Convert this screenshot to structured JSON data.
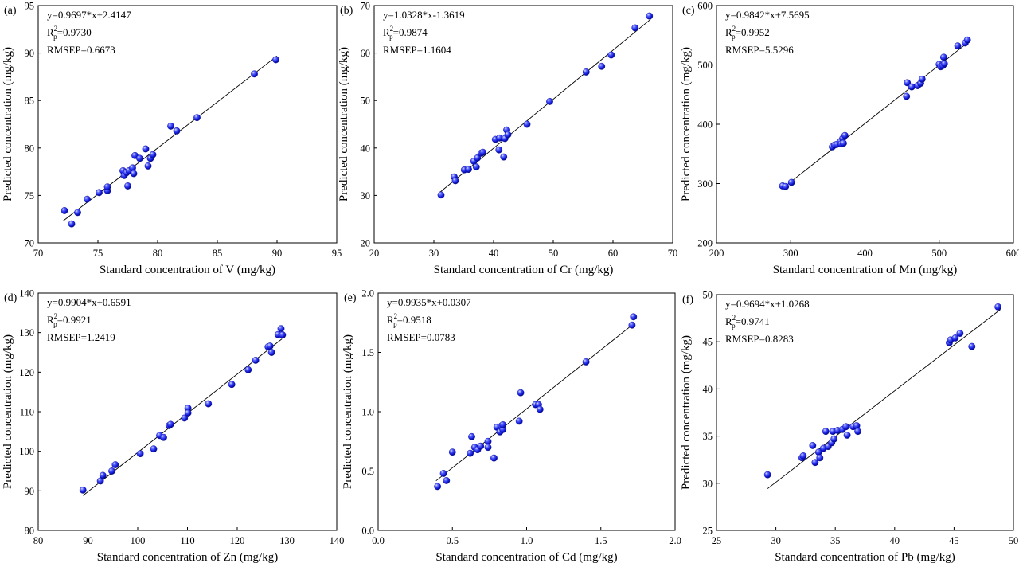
{
  "chart_data": [
    {
      "type": "scatter",
      "panel_label": "(a)",
      "xlabel": "Standard concentration of V (mg/kg)",
      "ylabel": "Predicted concentration (mg/kg)",
      "xlim": [
        70,
        95
      ],
      "ylim": [
        70,
        95
      ],
      "xticks": [
        70,
        75,
        80,
        85,
        90,
        95
      ],
      "yticks": [
        70,
        75,
        80,
        85,
        90,
        95
      ],
      "equation": "y=0.9697*x+2.4147",
      "r2": "=0.9730",
      "rmsep": "RMSEP=0.6673",
      "fit": {
        "slope": 0.9697,
        "intercept": 2.4147,
        "x_range": [
          72.1,
          90.0
        ]
      },
      "grid": false,
      "legend": "none",
      "points": [
        [
          72.2,
          73.4
        ],
        [
          72.8,
          72.0
        ],
        [
          73.3,
          73.2
        ],
        [
          74.1,
          74.6
        ],
        [
          75.1,
          75.3
        ],
        [
          75.8,
          75.5
        ],
        [
          75.8,
          75.9
        ],
        [
          77.1,
          77.6
        ],
        [
          77.2,
          77.1
        ],
        [
          77.4,
          77.4
        ],
        [
          77.6,
          77.6
        ],
        [
          77.9,
          77.9
        ],
        [
          77.5,
          76.0
        ],
        [
          78.0,
          77.3
        ],
        [
          78.1,
          79.2
        ],
        [
          78.5,
          78.9
        ],
        [
          79.0,
          79.9
        ],
        [
          79.2,
          78.1
        ],
        [
          79.4,
          78.9
        ],
        [
          79.6,
          79.3
        ],
        [
          81.1,
          82.3
        ],
        [
          81.6,
          81.8
        ],
        [
          83.3,
          83.2
        ],
        [
          88.1,
          87.8
        ],
        [
          89.9,
          89.3
        ]
      ]
    },
    {
      "type": "scatter",
      "panel_label": "(b)",
      "xlabel": "Standard concentration of Cr (mg/kg)",
      "ylabel": "Predicted concentration (mg/kg)",
      "xlim": [
        20,
        70
      ],
      "ylim": [
        20,
        70
      ],
      "xticks": [
        20,
        30,
        40,
        50,
        60,
        70
      ],
      "yticks": [
        20,
        30,
        40,
        50,
        60,
        70
      ],
      "equation": "y=1.0328*x-1.3619",
      "r2": "=0.9874",
      "rmsep": "RMSEP=1.1604",
      "fit": {
        "slope": 1.0328,
        "intercept": -1.3619,
        "x_range": [
          31.0,
          66.3
        ]
      },
      "grid": false,
      "legend": "none",
      "points": [
        [
          31.2,
          30.1
        ],
        [
          33.4,
          33.9
        ],
        [
          33.6,
          33.1
        ],
        [
          35.1,
          35.4
        ],
        [
          35.8,
          35.5
        ],
        [
          36.7,
          37.2
        ],
        [
          37.1,
          36.0
        ],
        [
          37.3,
          37.9
        ],
        [
          37.9,
          38.9
        ],
        [
          38.2,
          39.1
        ],
        [
          40.3,
          41.8
        ],
        [
          40.9,
          39.6
        ],
        [
          41.0,
          42.1
        ],
        [
          41.7,
          38.1
        ],
        [
          41.9,
          42.0
        ],
        [
          42.2,
          43.8
        ],
        [
          42.4,
          42.8
        ],
        [
          45.6,
          45.0
        ],
        [
          49.4,
          49.8
        ],
        [
          55.5,
          56.0
        ],
        [
          58.1,
          57.2
        ],
        [
          59.7,
          59.6
        ],
        [
          63.7,
          65.3
        ],
        [
          66.1,
          67.8
        ]
      ]
    },
    {
      "type": "scatter",
      "panel_label": "(c)",
      "xlabel": "Standard concentration of Mn (mg/kg)",
      "ylabel": "Predicted concentration (mg/kg)",
      "xlim": [
        200,
        600
      ],
      "ylim": [
        200,
        600
      ],
      "xticks": [
        200,
        300,
        400,
        500,
        600
      ],
      "yticks": [
        200,
        300,
        400,
        500,
        600
      ],
      "equation": "y=0.9842*x+7.5695",
      "r2": "=0.9952",
      "rmsep": "RMSEP=5.5296",
      "fit": {
        "slope": 0.9842,
        "intercept": 7.5695,
        "x_range": [
          288,
          540
        ]
      },
      "grid": false,
      "legend": "none",
      "points": [
        [
          289,
          296
        ],
        [
          293,
          295
        ],
        [
          301,
          302
        ],
        [
          356,
          362
        ],
        [
          359,
          365
        ],
        [
          362,
          366
        ],
        [
          367,
          371
        ],
        [
          368,
          367
        ],
        [
          370,
          376
        ],
        [
          371,
          368
        ],
        [
          373,
          381
        ],
        [
          456,
          447
        ],
        [
          457,
          470
        ],
        [
          463,
          463
        ],
        [
          471,
          465
        ],
        [
          475,
          469
        ],
        [
          477,
          476
        ],
        [
          500,
          501
        ],
        [
          502,
          497
        ],
        [
          505,
          499
        ],
        [
          507,
          502
        ],
        [
          506,
          513
        ],
        [
          525,
          532
        ],
        [
          535,
          537
        ],
        [
          538,
          542
        ]
      ]
    },
    {
      "type": "scatter",
      "panel_label": "(d)",
      "xlabel": "Standard concentration of Zn (mg/kg)",
      "ylabel": "Predicted concentration (mg/kg)",
      "xlim": [
        80,
        140
      ],
      "ylim": [
        80,
        140
      ],
      "xticks": [
        80,
        90,
        100,
        110,
        120,
        130,
        140
      ],
      "yticks": [
        80,
        90,
        100,
        110,
        120,
        130,
        140
      ],
      "equation": "y=0.9904*x+0.6591",
      "r2": "=0.9921",
      "rmsep": "RMSEP=1.2419",
      "fit": {
        "slope": 0.9904,
        "intercept": 0.6591,
        "x_range": [
          89.0,
          129.0
        ]
      },
      "grid": false,
      "legend": "none",
      "points": [
        [
          89.0,
          90.2
        ],
        [
          92.5,
          92.5
        ],
        [
          93.0,
          93.9
        ],
        [
          94.8,
          95.0
        ],
        [
          95.5,
          96.6
        ],
        [
          100.5,
          99.4
        ],
        [
          103.2,
          100.6
        ],
        [
          104.4,
          104.0
        ],
        [
          105.2,
          103.5
        ],
        [
          106.3,
          106.5
        ],
        [
          106.6,
          106.8
        ],
        [
          109.4,
          108.4
        ],
        [
          110.1,
          110.9
        ],
        [
          110.1,
          109.7
        ],
        [
          114.2,
          112.0
        ],
        [
          118.9,
          116.9
        ],
        [
          122.2,
          120.6
        ],
        [
          123.7,
          123.0
        ],
        [
          126.2,
          126.4
        ],
        [
          126.6,
          126.6
        ],
        [
          126.9,
          125.0
        ],
        [
          128.2,
          129.5
        ],
        [
          128.8,
          131.0
        ],
        [
          129.0,
          129.5
        ],
        [
          129.1,
          129.4
        ]
      ]
    },
    {
      "type": "scatter",
      "panel_label": "(e)",
      "xlabel": "Standard concentration of Cd (mg/kg)",
      "ylabel": "Predicted concentration (mg/kg)",
      "xlim": [
        0.0,
        2.0
      ],
      "ylim": [
        0.0,
        2.0
      ],
      "xticks": [
        "0.0",
        "0.5",
        "1.0",
        "1.5",
        "2.0"
      ],
      "yticks": [
        "0.0",
        "0.5",
        "1.0",
        "1.5",
        "2.0"
      ],
      "xtick_values": [
        0.0,
        0.5,
        1.0,
        1.5,
        2.0
      ],
      "ytick_values": [
        0.0,
        0.5,
        1.0,
        1.5,
        2.0
      ],
      "equation": "y=0.9935*x+0.0307",
      "r2": "=0.9518",
      "rmsep": "RMSEP=0.0783",
      "fit": {
        "slope": 0.9935,
        "intercept": 0.0307,
        "x_range": [
          0.39,
          1.72
        ]
      },
      "grid": false,
      "legend": "none",
      "points": [
        [
          0.4,
          0.37
        ],
        [
          0.44,
          0.48
        ],
        [
          0.46,
          0.42
        ],
        [
          0.5,
          0.66
        ],
        [
          0.62,
          0.65
        ],
        [
          0.63,
          0.79
        ],
        [
          0.65,
          0.7
        ],
        [
          0.67,
          0.68
        ],
        [
          0.69,
          0.71
        ],
        [
          0.74,
          0.75
        ],
        [
          0.74,
          0.7
        ],
        [
          0.78,
          0.61
        ],
        [
          0.8,
          0.87
        ],
        [
          0.82,
          0.83
        ],
        [
          0.83,
          0.88
        ],
        [
          0.84,
          0.85
        ],
        [
          0.84,
          0.89
        ],
        [
          0.95,
          0.92
        ],
        [
          0.96,
          1.16
        ],
        [
          1.06,
          1.06
        ],
        [
          1.08,
          1.06
        ],
        [
          1.09,
          1.02
        ],
        [
          1.4,
          1.42
        ],
        [
          1.71,
          1.73
        ],
        [
          1.72,
          1.8
        ]
      ]
    },
    {
      "type": "scatter",
      "panel_label": "(f)",
      "xlabel": "Standard concentration of Pb (mg/kg)",
      "ylabel": "Predicted concentration (mg/kg)",
      "xlim": [
        25,
        50
      ],
      "ylim": [
        25,
        50
      ],
      "xticks": [
        25,
        30,
        35,
        40,
        45,
        50
      ],
      "yticks": [
        25,
        30,
        35,
        40,
        45,
        50
      ],
      "equation": "y=0.9694*x+1.0268",
      "r2": "=0.9741",
      "rmsep": "RMSEP=0.8283",
      "fit": {
        "slope": 0.9694,
        "intercept": 1.0268,
        "x_range": [
          29.3,
          48.9
        ]
      },
      "grid": false,
      "legend": "none",
      "points": [
        [
          29.3,
          30.9
        ],
        [
          32.2,
          32.7
        ],
        [
          32.3,
          32.9
        ],
        [
          33.1,
          34.0
        ],
        [
          33.3,
          32.2
        ],
        [
          33.6,
          33.3
        ],
        [
          33.7,
          32.7
        ],
        [
          34.0,
          33.7
        ],
        [
          34.2,
          35.5
        ],
        [
          34.4,
          33.9
        ],
        [
          34.7,
          34.3
        ],
        [
          34.8,
          35.5
        ],
        [
          34.9,
          34.7
        ],
        [
          35.2,
          35.6
        ],
        [
          35.6,
          35.7
        ],
        [
          35.9,
          36.0
        ],
        [
          36.0,
          35.1
        ],
        [
          36.5,
          36.0
        ],
        [
          36.8,
          36.1
        ],
        [
          36.9,
          35.5
        ],
        [
          44.6,
          44.9
        ],
        [
          44.7,
          45.2
        ],
        [
          45.1,
          45.4
        ],
        [
          45.5,
          45.9
        ],
        [
          46.5,
          44.5
        ],
        [
          48.7,
          48.7
        ]
      ]
    }
  ]
}
